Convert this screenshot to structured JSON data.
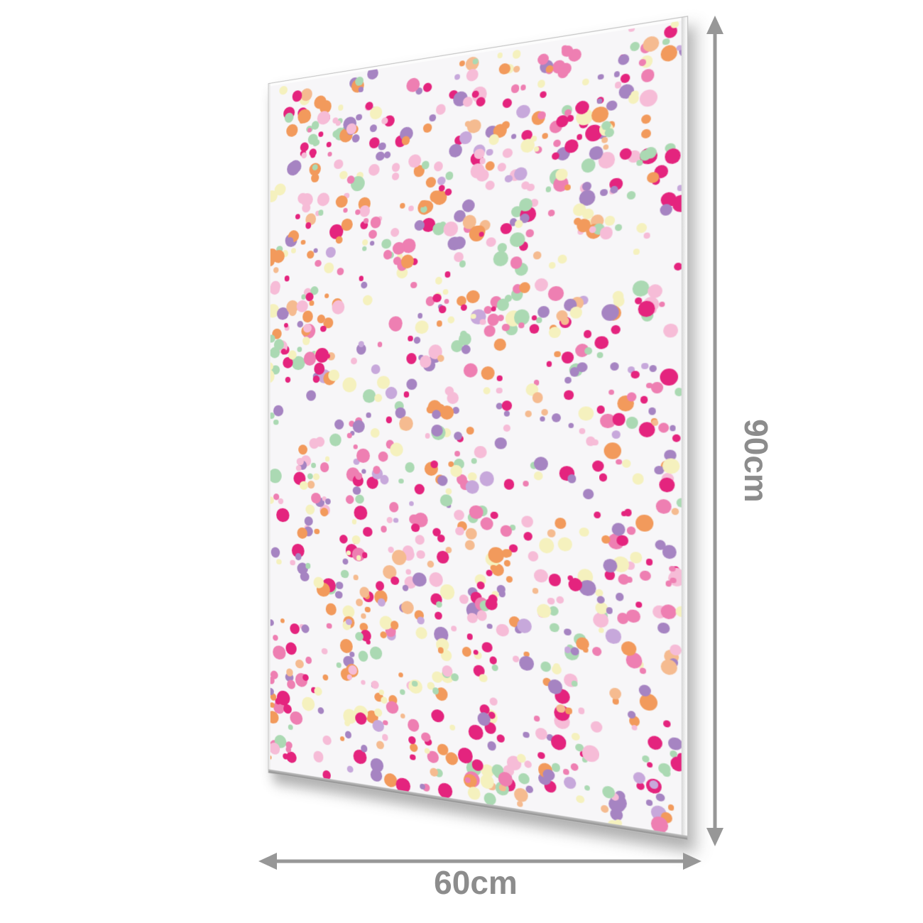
{
  "product_view": {
    "description": "panel-with-confetti-pattern-dimension-diagram",
    "height_label": "90cm",
    "width_label": "60cm"
  },
  "colors": {
    "page-bg": "#ffffff",
    "arrow": "#979797",
    "dim-label": "#8c8c8c",
    "panel-face": "#f7f6f8",
    "panel-edge-line": "#bdbdbd",
    "panel-edge-top": "#fcfcfc",
    "panel-edge-left": "#ececec",
    "panel-edge-right-start": "#d6d6d6",
    "panel-edge-right-end": "#ffffff",
    "panel-edge-bottom-start": "#c4c4c4",
    "panel-edge-bottom-end": "#8e8e8e",
    "panel-shadow": "rgba(80,80,80,0.45)"
  },
  "confetti_pattern": {
    "seed": 987123,
    "dot_count": 1180,
    "min_radius": 3.5,
    "max_radius": 11,
    "cluster_probability": 0.32,
    "same_color_cluster_probability": 0.5,
    "cluster_spread": 22,
    "palette": [
      {
        "name": "magenta",
        "hex": "#E4247E",
        "weight": 17
      },
      {
        "name": "rose-pink",
        "hex": "#EE7FB2",
        "weight": 11
      },
      {
        "name": "light-pink",
        "hex": "#F6BCD7",
        "weight": 13
      },
      {
        "name": "orange",
        "hex": "#F29A5C",
        "weight": 12
      },
      {
        "name": "peach",
        "hex": "#F5BB90",
        "weight": 4
      },
      {
        "name": "pale-yellow",
        "hex": "#F5F1BE",
        "weight": 13
      },
      {
        "name": "mint-green",
        "hex": "#ABD9B3",
        "weight": 12
      },
      {
        "name": "lilac-purple",
        "hex": "#A684C2",
        "weight": 14
      },
      {
        "name": "light-lilac",
        "hex": "#C7A8DB",
        "weight": 4
      }
    ]
  }
}
